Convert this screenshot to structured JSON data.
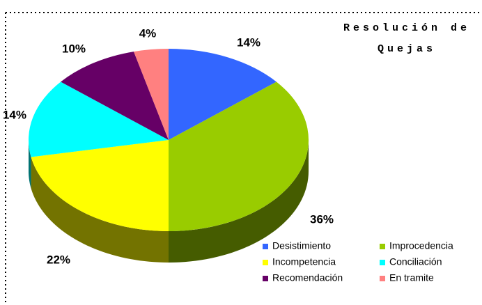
{
  "chart_data": {
    "type": "pie",
    "title": "Resolución de Quejas",
    "categories": [
      "Desistimiento",
      "Improcedencia",
      "Incompetencia",
      "Conciliación",
      "Recomendación",
      "En tramite"
    ],
    "values": [
      14,
      36,
      22,
      14,
      10,
      4
    ],
    "value_labels": [
      "14%",
      "36%",
      "22%",
      "14%",
      "10%",
      "4%"
    ],
    "colors": [
      "#3366ff",
      "#99cc00",
      "#ffff00",
      "#00ffff",
      "#660066",
      "#ff8080"
    ],
    "legend": "bottom-right"
  }
}
